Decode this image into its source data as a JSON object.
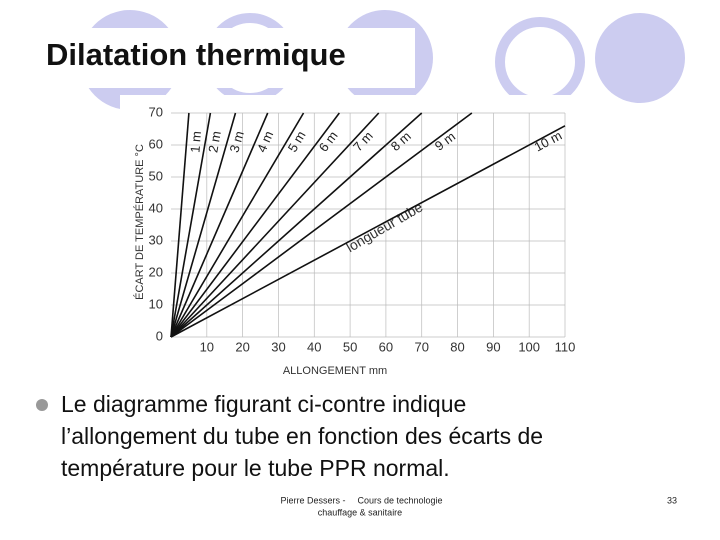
{
  "title": "Dilatation thermique",
  "chart_data": {
    "type": "line",
    "xlabel": "ALLONGEMENT mm",
    "ylabel": "ÉCART DE TEMPÉRATURE °C",
    "annotation": "longueur tube",
    "xlim": [
      0,
      110
    ],
    "ylim": [
      0,
      70
    ],
    "xticks": [
      10,
      20,
      30,
      40,
      50,
      60,
      70,
      80,
      90,
      100,
      110
    ],
    "yticks": [
      0,
      10,
      20,
      30,
      40,
      50,
      60,
      70
    ],
    "grid": true,
    "series": [
      {
        "name": "1 m",
        "color": "#111111",
        "x": [
          0,
          5
        ],
        "values": [
          0,
          70
        ]
      },
      {
        "name": "2 m",
        "color": "#111111",
        "x": [
          0,
          11
        ],
        "values": [
          0,
          70
        ]
      },
      {
        "name": "3 m",
        "color": "#111111",
        "x": [
          0,
          18
        ],
        "values": [
          0,
          70
        ]
      },
      {
        "name": "4 m",
        "color": "#111111",
        "x": [
          0,
          27
        ],
        "values": [
          0,
          70
        ]
      },
      {
        "name": "5 m",
        "color": "#111111",
        "x": [
          0,
          37
        ],
        "values": [
          0,
          70
        ]
      },
      {
        "name": "6 m",
        "color": "#111111",
        "x": [
          0,
          47
        ],
        "values": [
          0,
          70
        ]
      },
      {
        "name": "7 m",
        "color": "#111111",
        "x": [
          0,
          58
        ],
        "values": [
          0,
          70
        ]
      },
      {
        "name": "8 m",
        "color": "#111111",
        "x": [
          0,
          70
        ],
        "values": [
          0,
          70
        ]
      },
      {
        "name": "9 m",
        "color": "#111111",
        "x": [
          0,
          84
        ],
        "values": [
          0,
          70
        ]
      },
      {
        "name": "10 m",
        "color": "#111111",
        "x": [
          0,
          110
        ],
        "values": [
          0,
          66
        ]
      }
    ]
  },
  "bullet_lines": [
    "Le diagramme figurant ci-contre indique",
    "l’allongement du tube en fonction des écarts de",
    "température pour le tube PPR normal."
  ],
  "footer": {
    "author": "Pierre Dessers -",
    "course_1": "Cours de technologie",
    "course_2": "chauffage & sanitaire",
    "page": "33"
  }
}
